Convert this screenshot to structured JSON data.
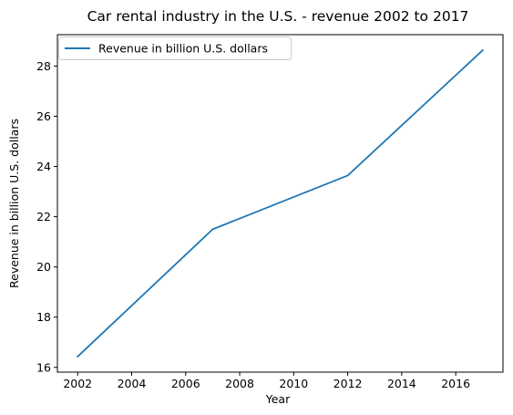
{
  "chart_data": {
    "type": "line",
    "title": "Car rental industry in the U.S. - revenue 2002 to 2017",
    "xlabel": "Year",
    "ylabel": "Revenue in billion U.S. dollars",
    "x": [
      2002,
      2007,
      2012,
      2017
    ],
    "series": [
      {
        "name": "Revenue in billion U.S. dollars",
        "values": [
          16.43,
          21.5,
          23.64,
          28.63
        ],
        "color": "#1f77b4"
      }
    ],
    "xlim": [
      2001.25,
      2017.75
    ],
    "ylim": [
      15.81,
      29.25
    ],
    "xticks": [
      2002,
      2004,
      2006,
      2008,
      2010,
      2012,
      2014,
      2016
    ],
    "yticks": [
      16,
      18,
      20,
      22,
      24,
      26,
      28
    ],
    "grid": false,
    "legend_position": "top-left"
  }
}
